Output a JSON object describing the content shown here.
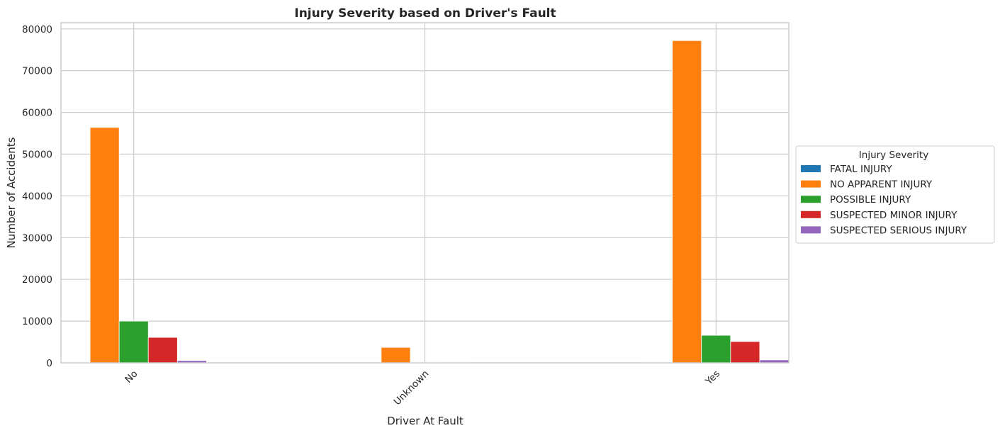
{
  "chart_data": {
    "type": "bar",
    "title": "Injury Severity based on Driver's Fault",
    "xlabel": "Driver At Fault",
    "ylabel": "Number of Accidents",
    "categories": [
      "No",
      "Unknown",
      "Yes"
    ],
    "series": [
      {
        "name": "FATAL INJURY",
        "color": "#1f77b4",
        "values": [
          60,
          0,
          60
        ]
      },
      {
        "name": "NO APPARENT INJURY",
        "color": "#ff7f0e",
        "values": [
          56400,
          3700,
          77200
        ]
      },
      {
        "name": "POSSIBLE INJURY",
        "color": "#2ca02c",
        "values": [
          10000,
          100,
          6600
        ]
      },
      {
        "name": "SUSPECTED MINOR INJURY",
        "color": "#d62728",
        "values": [
          6100,
          80,
          5100
        ]
      },
      {
        "name": "SUSPECTED SERIOUS INJURY",
        "color": "#9467bd",
        "values": [
          550,
          20,
          700
        ]
      }
    ],
    "ylim": [
      0,
      81500
    ],
    "yticks": [
      0,
      10000,
      20000,
      30000,
      40000,
      50000,
      60000,
      70000,
      80000
    ],
    "grid": true,
    "legend": {
      "title": "Injury Severity",
      "placement": "center-right-outside"
    }
  }
}
